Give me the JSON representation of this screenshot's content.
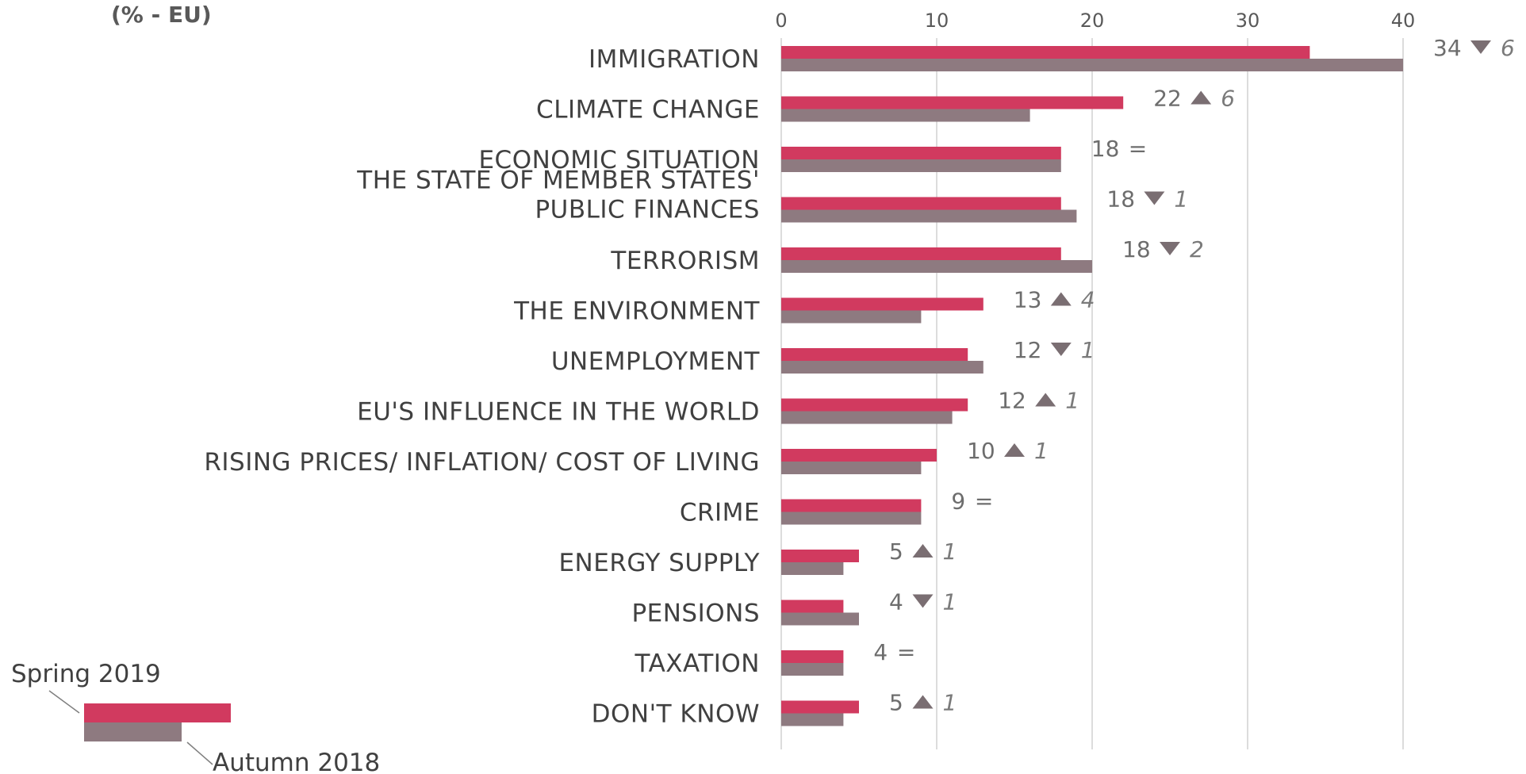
{
  "chart_data": {
    "type": "bar",
    "unit_label": "(% - EU)",
    "xlim": [
      0,
      40
    ],
    "ticks": [
      0,
      10,
      20,
      30,
      40
    ],
    "grid": true,
    "legend_position": "bottom-left",
    "colors": {
      "spring": "#d13a5f",
      "autumn": "#8e7a80",
      "grid": "#d0d0d0",
      "marker": "#7a6e72"
    },
    "series": [
      {
        "name": "Spring 2019",
        "values": [
          34,
          22,
          18,
          18,
          18,
          13,
          12,
          12,
          10,
          9,
          5,
          4,
          4,
          5
        ]
      },
      {
        "name": "Autumn 2018",
        "values": [
          40,
          16,
          18,
          19,
          20,
          9,
          13,
          11,
          9,
          9,
          4,
          5,
          4,
          4
        ]
      }
    ],
    "categories": [
      {
        "lines": [
          "IMMIGRATION"
        ],
        "value": "34",
        "direction": "down",
        "change": "6"
      },
      {
        "lines": [
          "CLIMATE CHANGE"
        ],
        "value": "22",
        "direction": "up",
        "change": "6"
      },
      {
        "lines": [
          "ECONOMIC SITUATION"
        ],
        "value": "18",
        "direction": "equal",
        "change": "="
      },
      {
        "lines": [
          "THE STATE OF MEMBER STATES'",
          "PUBLIC FINANCES"
        ],
        "value": "18",
        "direction": "down",
        "change": "1"
      },
      {
        "lines": [
          "TERRORISM"
        ],
        "value": "18",
        "direction": "down",
        "change": "2"
      },
      {
        "lines": [
          "THE ENVIRONMENT"
        ],
        "value": "13",
        "direction": "up",
        "change": "4"
      },
      {
        "lines": [
          "UNEMPLOYMENT"
        ],
        "value": "12",
        "direction": "down",
        "change": "1"
      },
      {
        "lines": [
          "EU'S INFLUENCE IN THE WORLD"
        ],
        "value": "12",
        "direction": "up",
        "change": "1"
      },
      {
        "lines": [
          "RISING PRICES/ INFLATION/ COST OF LIVING"
        ],
        "value": "10",
        "direction": "up",
        "change": "1"
      },
      {
        "lines": [
          "CRIME"
        ],
        "value": "9",
        "direction": "equal",
        "change": "="
      },
      {
        "lines": [
          "ENERGY SUPPLY"
        ],
        "value": "5",
        "direction": "up",
        "change": "1"
      },
      {
        "lines": [
          "PENSIONS"
        ],
        "value": "4",
        "direction": "down",
        "change": "1"
      },
      {
        "lines": [
          "TAXATION"
        ],
        "value": "4",
        "direction": "equal",
        "change": "="
      },
      {
        "lines": [
          "DON'T KNOW"
        ],
        "value": "5",
        "direction": "up",
        "change": "1"
      }
    ]
  }
}
